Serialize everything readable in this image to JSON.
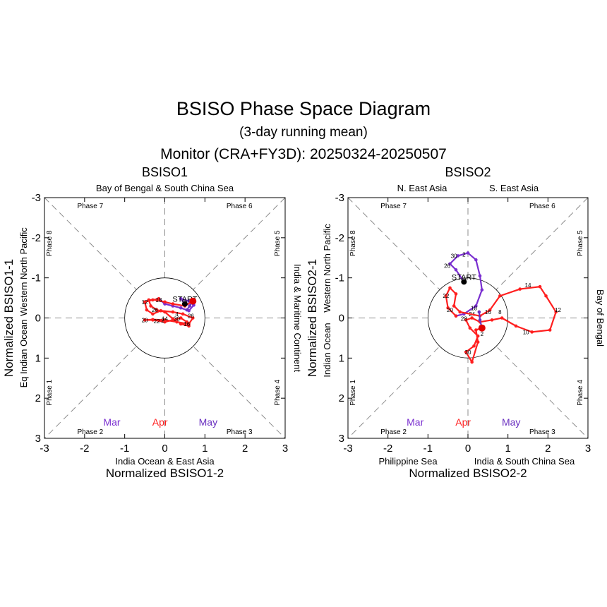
{
  "figure": {
    "title": "BSISO Phase Space Diagram",
    "subtitle": "(3-day running mean)",
    "monitor": "Monitor (CRA+FY3D): 20250324-20250507"
  },
  "colors": {
    "Mar": "#7a2fd0",
    "Apr": "#ff1f1f",
    "May": "#6a30c0",
    "axis": "#000000",
    "guides": "#8c8c8c"
  },
  "chart_data": [
    {
      "type": "scatter",
      "panel_title": "BSISO1",
      "xlabel": "Normalized BSISO1-2",
      "ylabel": "Normalized BSISO1-1",
      "xlim": [
        -3,
        3
      ],
      "ylim": [
        -3,
        3
      ],
      "y_reversed": true,
      "x_ticks": [
        "-3",
        "-2",
        "-1",
        "0",
        "1",
        "2",
        "3"
      ],
      "y_ticks": [
        "-3",
        "-2",
        "-1",
        "0",
        "1",
        "2",
        "3"
      ],
      "regions": {
        "top": "Bay of Bengal & South China Sea",
        "bottom": "India Ocean & East Asia",
        "left": "Eq Indian Ocean",
        "left2": "Western North Pacific",
        "right": "India & Maritime Continent"
      },
      "phases": [
        "Phase 1",
        "Phase 2",
        "Phase 3",
        "Phase 4",
        "Phase 5",
        "Phase 6",
        "Phase 7",
        "Phase 8"
      ],
      "month_labels": [
        "Mar",
        "Apr",
        "May"
      ],
      "start_label": "START",
      "start_point": [
        0.5,
        -0.35
      ],
      "end_point": [
        0.7,
        -0.42
      ],
      "series": [
        {
          "name": "Mar",
          "points": [
            [
              0.5,
              -0.35
            ],
            [
              0.4,
              -0.48
            ],
            [
              0.6,
              -0.42
            ],
            [
              0.72,
              -0.32
            ],
            [
              0.6,
              -0.18
            ],
            [
              0.4,
              -0.25
            ],
            [
              0.2,
              -0.3
            ],
            [
              0.0,
              -0.35
            ],
            [
              -0.15,
              -0.48
            ]
          ],
          "labels": []
        },
        {
          "name": "Apr",
          "points": [
            [
              -0.15,
              -0.48
            ],
            [
              -0.3,
              -0.45
            ],
            [
              -0.5,
              -0.4
            ],
            [
              -0.45,
              -0.2
            ],
            [
              -0.3,
              -0.1
            ],
            [
              -0.1,
              -0.18
            ],
            [
              0.2,
              -0.15
            ],
            [
              0.45,
              -0.1
            ],
            [
              0.7,
              0.0
            ],
            [
              0.6,
              0.15
            ],
            [
              0.3,
              0.1
            ],
            [
              0.0,
              0.05
            ],
            [
              -0.3,
              0.04
            ],
            [
              -0.5,
              0.05
            ],
            [
              -0.3,
              0.05
            ],
            [
              0.0,
              0.1
            ],
            [
              0.2,
              0.05
            ],
            [
              0.4,
              0.0
            ],
            [
              0.55,
              0.1
            ],
            [
              0.6,
              0.2
            ],
            [
              0.4,
              0.15
            ],
            [
              0.2,
              0.02
            ],
            [
              0.0,
              -0.15
            ],
            [
              -0.2,
              -0.2
            ],
            [
              -0.35,
              -0.3
            ],
            [
              -0.4,
              -0.45
            ],
            [
              -0.2,
              -0.45
            ],
            [
              0.0,
              -0.4
            ],
            [
              0.2,
              -0.35
            ],
            [
              0.5,
              -0.3
            ],
            [
              0.7,
              -0.42
            ]
          ],
          "labels": [
            {
              "text": "12",
              "at": [
                -0.5,
                -0.4
              ]
            },
            {
              "text": "18",
              "at": [
                -0.15,
                -0.45
              ]
            },
            {
              "text": "26",
              "at": [
                -0.25,
                -0.2
              ]
            },
            {
              "text": "20",
              "at": [
                -0.5,
                0.05
              ]
            },
            {
              "text": "2",
              "at": [
                -0.05,
                0.06
              ]
            },
            {
              "text": "14",
              "at": [
                0.0,
                0.02
              ]
            },
            {
              "text": "22",
              "at": [
                -0.2,
                0.08
              ]
            },
            {
              "text": "30",
              "at": [
                0.3,
                0.02
              ]
            },
            {
              "text": "16",
              "at": [
                0.55,
                0.15
              ]
            },
            {
              "text": "26",
              "at": [
                0.65,
                -0.05
              ]
            },
            {
              "text": "4",
              "at": [
                0.3,
                -0.1
              ]
            }
          ]
        },
        {
          "name": "May",
          "points": [
            [
              0.7,
              -0.42
            ],
            [
              0.62,
              -0.3
            ],
            [
              0.55,
              -0.2
            ]
          ],
          "labels": []
        }
      ]
    },
    {
      "type": "scatter",
      "panel_title": "BSISO2",
      "xlabel": "Normalized BSISO2-2",
      "ylabel": "Normalized BSISO2-1",
      "xlim": [
        -3,
        3
      ],
      "ylim": [
        -3,
        3
      ],
      "y_reversed": true,
      "x_ticks": [
        "-3",
        "-2",
        "-1",
        "0",
        "1",
        "2",
        "3"
      ],
      "y_ticks": [
        "-3",
        "-2",
        "-1",
        "0",
        "1",
        "2",
        "3"
      ],
      "regions": {
        "top_left": "N. East Asia",
        "top_right": "S. East Asia",
        "bottom_left": "Philippine Sea",
        "bottom_right": "India & South China Sea",
        "left": "Indian Ocean",
        "left2": "Western North Pacific",
        "right": "Bay of Bengal"
      },
      "phases": [
        "Phase 1",
        "Phase 2",
        "Phase 3",
        "Phase 4",
        "Phase 5",
        "Phase 6",
        "Phase 7",
        "Phase 8"
      ],
      "month_labels": [
        "Mar",
        "Apr",
        "May"
      ],
      "start_label": "START",
      "start_point": [
        -0.1,
        -0.9
      ],
      "end_point": [
        0.35,
        0.25
      ],
      "series": [
        {
          "name": "Mar",
          "points": [
            [
              -0.1,
              -0.9
            ],
            [
              -0.3,
              -1.2
            ],
            [
              -0.45,
              -1.35
            ],
            [
              -0.25,
              -1.55
            ],
            [
              0.0,
              -1.62
            ],
            [
              0.2,
              -1.45
            ],
            [
              0.3,
              -1.05
            ],
            [
              0.35,
              -0.7
            ],
            [
              0.2,
              -0.3
            ],
            [
              -0.1,
              -0.1
            ],
            [
              -0.3,
              -0.05
            ]
          ],
          "labels": [
            {
              "text": "30",
              "at": [
                -0.35,
                -1.55
              ]
            },
            {
              "text": "2",
              "at": [
                -0.1,
                -1.58
              ]
            },
            {
              "text": "24",
              "at": [
                0.1,
                -0.1
              ]
            }
          ]
        },
        {
          "name": "Apr",
          "points": [
            [
              -0.3,
              -0.05
            ],
            [
              -0.5,
              -0.25
            ],
            [
              -0.55,
              -0.55
            ],
            [
              -0.45,
              -0.75
            ],
            [
              -0.3,
              -0.6
            ],
            [
              -0.35,
              -0.3
            ],
            [
              -0.2,
              -0.15
            ],
            [
              0.3,
              -0.05
            ],
            [
              0.55,
              -0.2
            ],
            [
              0.8,
              -0.55
            ],
            [
              1.3,
              -0.72
            ],
            [
              1.8,
              -0.78
            ],
            [
              1.95,
              -0.55
            ],
            [
              2.2,
              -0.15
            ],
            [
              2.05,
              0.3
            ],
            [
              1.6,
              0.35
            ],
            [
              1.2,
              0.2
            ],
            [
              0.85,
              0.0
            ],
            [
              0.6,
              0.05
            ],
            [
              0.3,
              0.1
            ],
            [
              0.1,
              0.0
            ],
            [
              -0.05,
              0.05
            ],
            [
              0.05,
              0.25
            ],
            [
              0.25,
              0.45
            ],
            [
              0.15,
              0.7
            ],
            [
              -0.05,
              0.85
            ],
            [
              0.1,
              1.1
            ],
            [
              0.25,
              0.6
            ],
            [
              0.2,
              0.3
            ],
            [
              0.35,
              0.25
            ]
          ],
          "labels": [
            {
              "text": "26",
              "at": [
                -0.52,
                -1.3
              ]
            },
            {
              "text": "22",
              "at": [
                -0.55,
                -0.55
              ]
            },
            {
              "text": "20",
              "at": [
                -0.45,
                -0.2
              ]
            },
            {
              "text": "14",
              "at": [
                1.5,
                -0.82
              ]
            },
            {
              "text": "12",
              "at": [
                2.25,
                -0.2
              ]
            },
            {
              "text": "10",
              "at": [
                1.45,
                0.35
              ]
            },
            {
              "text": "8",
              "at": [
                0.8,
                -0.15
              ]
            },
            {
              "text": "16",
              "at": [
                0.5,
                -0.15
              ]
            },
            {
              "text": "18",
              "at": [
                0.15,
                -0.25
              ]
            },
            {
              "text": "28",
              "at": [
                -0.1,
                0.02
              ]
            },
            {
              "text": "2",
              "at": [
                0.35,
                0.4
              ]
            },
            {
              "text": "30",
              "at": [
                0.0,
                0.85
              ]
            }
          ]
        },
        {
          "name": "May",
          "points": [
            [
              0.35,
              0.25
            ],
            [
              0.3,
              0.05
            ],
            [
              0.28,
              -0.15
            ]
          ],
          "labels": []
        }
      ]
    }
  ]
}
